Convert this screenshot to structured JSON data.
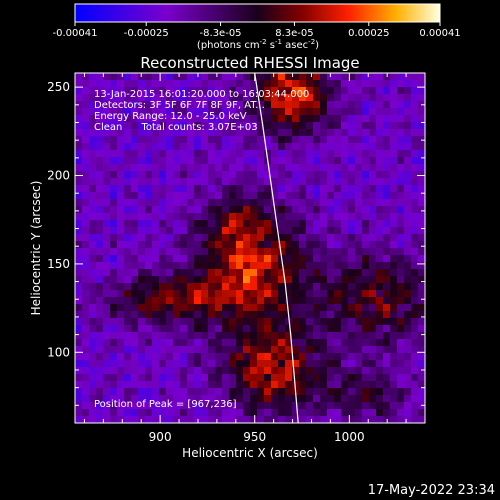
{
  "chart_data": {
    "type": "heatmap",
    "title": "Reconstructed RHESSI Image",
    "xlabel": "Heliocentric X (arcsec)",
    "ylabel": "Heliocentric Y (arcsec)",
    "xlim": [
      855,
      1040
    ],
    "ylim": [
      60,
      258
    ],
    "x_ticks": [
      900,
      950,
      1000
    ],
    "y_ticks": [
      100,
      150,
      200,
      250
    ],
    "colorbar": {
      "range": [
        -0.00041,
        0.00041
      ],
      "tick_values": [
        -0.00041,
        -0.00025,
        -8.3e-05,
        8.3e-05,
        0.00025,
        0.00041
      ],
      "tick_labels": [
        "-0.00041",
        "-0.00025",
        "-8.3e-05",
        "8.3e-05",
        "0.00025",
        "0.00041"
      ],
      "units_prefix": "(photons cm",
      "units_exp1": "-2",
      "units_mid": " s",
      "units_exp2": "-1",
      "units_suffix": " asec",
      "units_exp3": "-2",
      "units_end": ")"
    },
    "annotations": [
      "13-Jan-2015 16:01:20.000 to 16:03:44.000",
      "Detectors: 3F 5F 6F 7F 8F 9F, AT...",
      "Energy Range: 12.0 - 25.0 keV",
      "Clean      Total counts: 3.07E+03"
    ],
    "peak_label": "Position of Peak = [967,236]",
    "limb_points": [
      [
        950,
        258
      ],
      [
        954,
        230
      ],
      [
        958,
        200
      ],
      [
        962,
        170
      ],
      [
        966,
        140
      ],
      [
        969,
        110
      ],
      [
        971,
        85
      ],
      [
        973,
        60
      ]
    ],
    "emission_sources": [
      {
        "x": 970,
        "y": 245,
        "sx": 14,
        "sy": 14,
        "amp": 0.00041
      },
      {
        "x": 948,
        "y": 148,
        "sx": 20,
        "sy": 22,
        "amp": 0.00036
      },
      {
        "x": 960,
        "y": 90,
        "sx": 18,
        "sy": 16,
        "amp": 0.00034
      },
      {
        "x": 905,
        "y": 130,
        "sx": 22,
        "sy": 10,
        "amp": 0.00026
      },
      {
        "x": 1015,
        "y": 130,
        "sx": 22,
        "sy": 18,
        "amp": 0.00024
      },
      {
        "x": 1010,
        "y": 75,
        "sx": 14,
        "sy": 10,
        "amp": 0.00018
      },
      {
        "x": 940,
        "y": 175,
        "sx": 10,
        "sy": 10,
        "amp": 0.00015
      }
    ],
    "grid": false
  },
  "footer": {
    "date": "17-May-2022 23:34"
  }
}
